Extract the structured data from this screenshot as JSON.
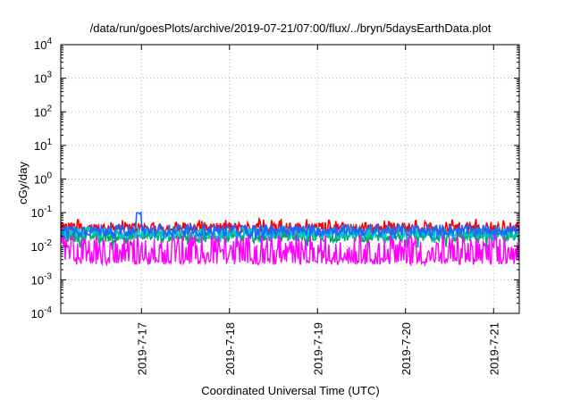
{
  "chart_data": {
    "type": "line",
    "title": "/data/run/goesPlots/archive/2019-07-21/07:00/flux/../bryn/5daysEarthData.plot",
    "xlabel": "Coordinated Universal Time (UTC)",
    "ylabel": "cGy/day",
    "y_scale": "log",
    "ylim_exponent": [
      -4,
      4
    ],
    "y_ticks": [
      {
        "base": "10",
        "exp": "-4"
      },
      {
        "base": "10",
        "exp": "-3"
      },
      {
        "base": "10",
        "exp": "-2"
      },
      {
        "base": "10",
        "exp": "-1"
      },
      {
        "base": "10",
        "exp": "0"
      },
      {
        "base": "10",
        "exp": "1"
      },
      {
        "base": "10",
        "exp": "2"
      },
      {
        "base": "10",
        "exp": "3"
      },
      {
        "base": "10",
        "exp": "4"
      }
    ],
    "x_range_days": [
      "2019-07-16 02:00",
      "2019-07-21 07:00"
    ],
    "x_ticks": [
      "2019-7-17",
      "2019-7-18",
      "2019-7-19",
      "2019-7-20",
      "2019-7-21"
    ],
    "grid": true,
    "series": [
      {
        "color": "#ff0000",
        "typical": 0.035,
        "min": 0.025,
        "max": 0.065
      },
      {
        "color": "#00aa66",
        "typical": 0.02,
        "min": 0.008,
        "max": 0.045
      },
      {
        "color": "#00c8c8",
        "typical": 0.025,
        "min": 0.012,
        "max": 0.05
      },
      {
        "color": "#1e64ff",
        "typical": 0.03,
        "min": 0.015,
        "max": 0.1
      },
      {
        "color": "#ff00ff",
        "typical": 0.006,
        "min": 0.0028,
        "max": 0.03
      }
    ]
  }
}
